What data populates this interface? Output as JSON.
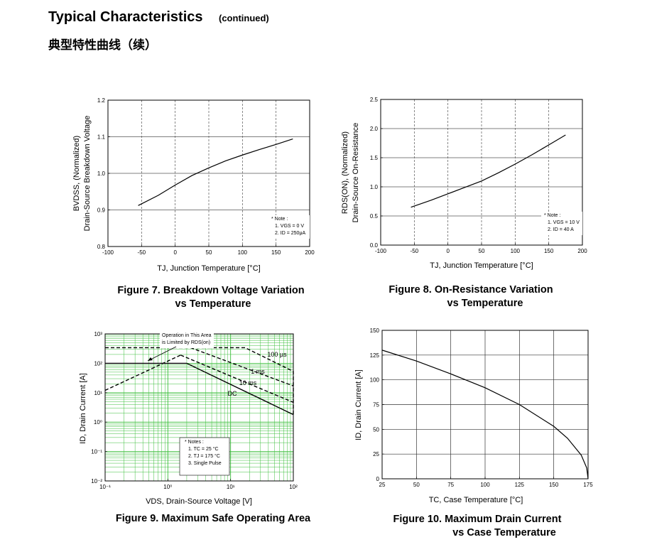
{
  "header": {
    "title": "Typical Characteristics",
    "subtitle": "(continued)",
    "title_cn": "典型特性曲线（续）"
  },
  "chart_data": [
    {
      "type": "line",
      "caption": [
        "Figure 7. Breakdown Voltage Variation",
        "vs Temperature"
      ],
      "xlabel": "TJ, Junction Temperature [°C]",
      "ylabel": [
        "BVDSS, (Normalized)",
        "Drain-Source Breakdown Voltage"
      ],
      "notes": [
        "* Note :",
        "1. VGS = 0 V",
        "2. ID = 250μA"
      ],
      "x": [
        -55,
        -25,
        0,
        25,
        50,
        75,
        100,
        125,
        150,
        175
      ],
      "values": [
        0.912,
        0.94,
        0.968,
        0.994,
        1.015,
        1.034,
        1.05,
        1.065,
        1.079,
        1.094
      ],
      "color": "#000000",
      "xlim": [
        -100,
        200
      ],
      "xticks": [
        -100,
        -50,
        0,
        50,
        100,
        150,
        200
      ],
      "ylim": [
        0.8,
        1.2
      ],
      "yticks": [
        0.8,
        0.9,
        {
          "value": 1,
          "label": "1.0"
        },
        1.1,
        1.2
      ],
      "grid": true
    },
    {
      "type": "line",
      "caption": [
        "Figure 8. On-Resistance Variation",
        "vs Temperature"
      ],
      "xlabel": "TJ, Junction Temperature [°C]",
      "ylabel": [
        "RDS(ON), (Normalized)",
        "Drain-Source On-Resistance"
      ],
      "notes": [
        "* Note :",
        "1. VGS = 10 V",
        "2. ID = 40 A"
      ],
      "x": [
        -55,
        -25,
        0,
        25,
        50,
        75,
        100,
        125,
        150,
        175
      ],
      "values": [
        0.65,
        0.77,
        0.88,
        0.99,
        1.1,
        1.24,
        1.39,
        1.55,
        1.72,
        1.89
      ],
      "color": "#000000",
      "xlim": [
        -100,
        200
      ],
      "xticks": [
        -100,
        -50,
        0,
        50,
        100,
        150,
        200
      ],
      "ylim": [
        0,
        2.5
      ],
      "yticks": [
        {
          "value": 0,
          "label": "0.0"
        },
        0.5,
        {
          "value": 1,
          "label": "1.0"
        },
        1.5,
        {
          "value": 2,
          "label": "2.0"
        },
        2.5
      ],
      "grid": true
    },
    {
      "type": "line",
      "log_x": true,
      "log_y": true,
      "caption": [
        "Figure 9. Maximum Safe Operating Area"
      ],
      "xlabel": "VDS, Drain-Source Voltage [V]",
      "ylabel": [
        "ID, Drain Current [A]"
      ],
      "annotation": [
        "Operation in This Area",
        "is Limited by RDS(on)"
      ],
      "notes": [
        "* Notes :",
        "1. TC = 25 °C",
        "2. TJ = 175 °C",
        "3. Single Pulse"
      ],
      "series": [
        {
          "x": [
            0.1,
            1.6
          ],
          "values": [
            12,
            190
          ],
          "color": "#000000",
          "dashed": true
        },
        {
          "name": "100 µs",
          "x": [
            0.1,
            17,
            100,
            100
          ],
          "values": [
            340,
            340,
            53,
            1.8
          ],
          "color": "#000000",
          "dashed": true
        },
        {
          "name": "1 ms",
          "x": [
            2.3,
            100
          ],
          "values": [
            340,
            17
          ],
          "color": "#000000",
          "dashed": true
        },
        {
          "name": "10 ms",
          "x": [
            1.6,
            100
          ],
          "values": [
            190,
            4.7
          ],
          "color": "#000000",
          "dashed": true
        },
        {
          "name": "DC",
          "x": [
            0.1,
            2,
            100
          ],
          "values": [
            100,
            100,
            1.8
          ],
          "color": "#000000",
          "dashed": false
        }
      ],
      "xlim": [
        0.1,
        100
      ],
      "xticks": [
        {
          "value": 0.1,
          "label": "10⁻¹"
        },
        {
          "value": 1,
          "label": "10⁰"
        },
        {
          "value": 10,
          "label": "10¹"
        },
        {
          "value": 100,
          "label": "10²"
        }
      ],
      "ylim": [
        0.01,
        1000
      ],
      "yticks": [
        {
          "value": 0.01,
          "label": "10⁻²"
        },
        {
          "value": 0.1,
          "label": "10⁻¹"
        },
        {
          "value": 1,
          "label": "10⁰"
        },
        {
          "value": 10,
          "label": "10¹"
        },
        {
          "value": 100,
          "label": "10²"
        },
        {
          "value": 1000,
          "label": "10³"
        }
      ],
      "grid": true,
      "grid_color": "#3cbf3c",
      "minor_grid": true
    },
    {
      "type": "line",
      "caption": [
        "Figure 10. Maximum Drain Current",
        "vs Case Temperature"
      ],
      "xlabel": "TC, Case Temperature [°C]",
      "ylabel": [
        "ID, Drain Current [A]"
      ],
      "x": [
        25,
        50,
        75,
        100,
        125,
        150,
        160,
        170,
        174,
        175
      ],
      "values": [
        130,
        119,
        106,
        92,
        75,
        53,
        41,
        24,
        11,
        0
      ],
      "color": "#000000",
      "xlim": [
        25,
        175
      ],
      "xticks": [
        25,
        50,
        75,
        100,
        125,
        150,
        175
      ],
      "ylim": [
        0,
        150
      ],
      "yticks": [
        0,
        25,
        50,
        75,
        100,
        125,
        150
      ],
      "grid": true
    }
  ]
}
